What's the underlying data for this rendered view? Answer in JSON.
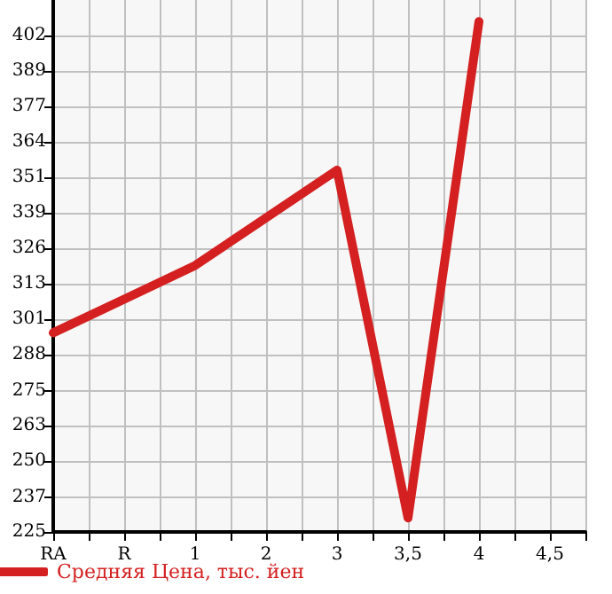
{
  "chart_data": {
    "type": "line",
    "categories": [
      "RA",
      "R",
      "1",
      "2",
      "3",
      "3,5",
      "4",
      "4,5"
    ],
    "series": [
      {
        "name": "Средняя Цена, тыс. йен",
        "color": "#d42020",
        "values": [
          296,
          308,
          320,
          337,
          354,
          230,
          407,
          null
        ]
      }
    ],
    "ylim": [
      225,
      414.64
    ],
    "yticks": [
      225,
      {
        "value": 237.4,
        "label": "237"
      },
      {
        "value": 250.29,
        "label": "250"
      },
      {
        "value": 262.93,
        "label": "263"
      },
      {
        "value": 275.4,
        "label": "275"
      },
      {
        "value": 288.21,
        "label": "288"
      },
      {
        "value": 300.86,
        "label": "301"
      },
      {
        "value": 313.5,
        "label": "313"
      },
      {
        "value": 326.14,
        "label": "326"
      },
      {
        "value": 338.79,
        "label": "339"
      },
      {
        "value": 351.43,
        "label": "351"
      },
      {
        "value": 364.07,
        "label": "364"
      },
      {
        "value": 376.71,
        "label": "377"
      },
      {
        "value": 389.36,
        "label": "389"
      },
      402
    ],
    "grid": true,
    "legend": "bottom left",
    "marker": "none",
    "line_style": "solid"
  }
}
